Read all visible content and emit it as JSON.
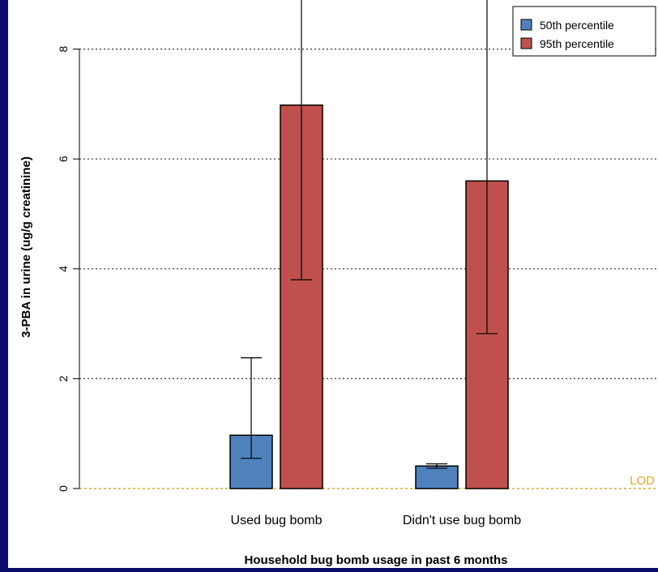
{
  "chart_data": {
    "type": "bar",
    "title": "",
    "xlabel": "Household bug bomb usage in past 6 months",
    "ylabel": "3-PBA in urine (ug/g creatinine)",
    "categories": [
      "Used bug bomb",
      "Didn't use bug bomb"
    ],
    "series": [
      {
        "name": "50th percentile",
        "color": "#4f81bd",
        "values": [
          0.97,
          0.41
        ],
        "error_low": [
          0.55,
          0.37
        ],
        "error_high": [
          2.38,
          0.45
        ]
      },
      {
        "name": "95th percentile",
        "color": "#c0504d",
        "values": [
          6.98,
          5.6
        ],
        "error_low": [
          3.8,
          2.82
        ],
        "error_high": [
          9.2,
          9.2
        ]
      }
    ],
    "ylim": [
      0,
      8.6
    ],
    "yticks": [
      0,
      2,
      4,
      6,
      8
    ],
    "grid": "horizontal-dotted",
    "legend_position": "top-right",
    "reference_line": {
      "label": "LOD",
      "value": 0,
      "color": "#e0a82e"
    }
  }
}
